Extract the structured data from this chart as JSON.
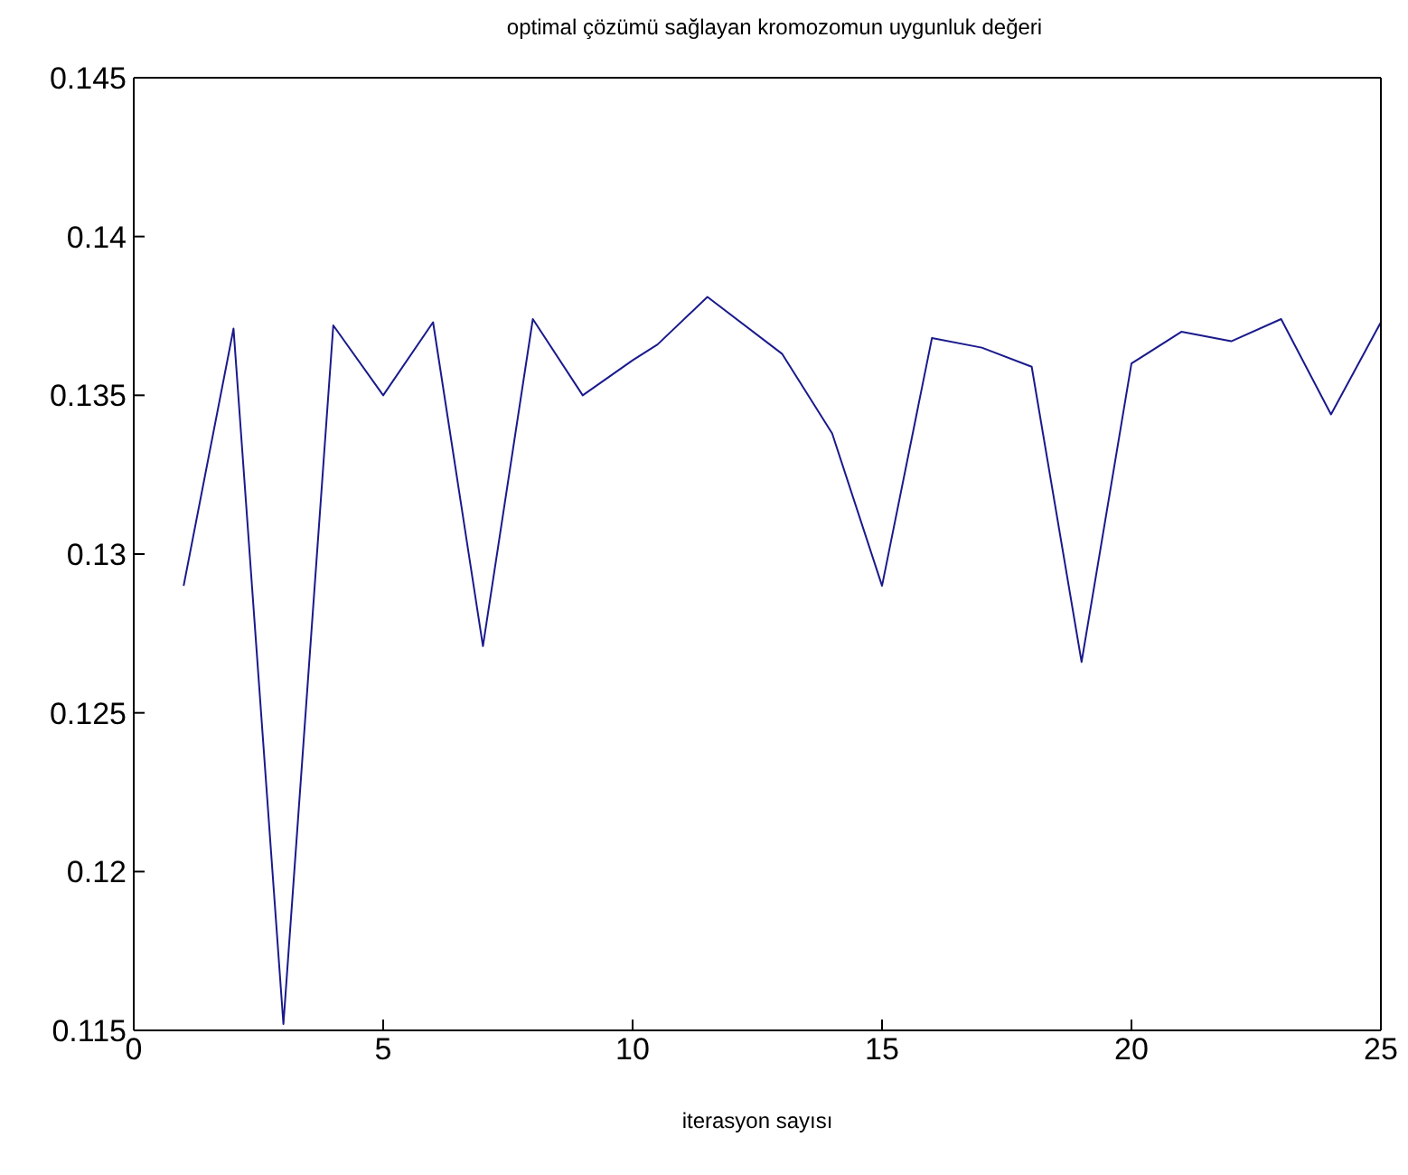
{
  "chart_data": {
    "type": "line",
    "title": "optimal çözümü sağlayan kromozomun uygunluk değeri",
    "xlabel": "iterasyon sayısı",
    "x": [
      1,
      2,
      3,
      4,
      5,
      6,
      7,
      8,
      9,
      10,
      10.5,
      11.5,
      13,
      14,
      15,
      16,
      17,
      18,
      19,
      20,
      21,
      22,
      23,
      24,
      25
    ],
    "series": [
      {
        "color": "#1a1a8c",
        "values": [
          0.129,
          0.1371,
          0.1152,
          0.1372,
          0.135,
          0.1373,
          0.1271,
          0.1374,
          0.135,
          0.1361,
          0.1366,
          0.1381,
          0.1363,
          0.1338,
          0.129,
          0.1368,
          0.1365,
          0.1359,
          0.1266,
          0.136,
          0.137,
          0.1367,
          0.1374,
          0.1344,
          0.1373
        ]
      }
    ],
    "xlim": [
      0,
      25
    ],
    "xticks": [
      0,
      5,
      10,
      15,
      20,
      25
    ],
    "ylim": [
      0.115,
      0.145
    ],
    "yticks": [
      0.115,
      0.12,
      0.125,
      0.13,
      0.135,
      0.14,
      0.145
    ],
    "grid": false,
    "legend": false,
    "marker": "none",
    "line_style": "solid"
  }
}
